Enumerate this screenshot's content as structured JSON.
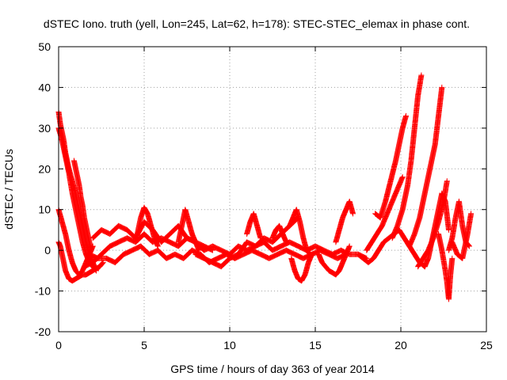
{
  "chart_data": {
    "type": "scatter",
    "title": "dSTEC Iono. truth (yell, Lon=245, Lat=62, h=178): STEC-STEC_elemax in phase cont.",
    "xlabel": "GPS time / hours of day 363 of year 2014",
    "ylabel": "dSTEC  / TECUs",
    "xlim": [
      0,
      25
    ],
    "ylim": [
      -20,
      50
    ],
    "xticks": [
      0,
      5,
      10,
      15,
      20,
      25
    ],
    "yticks": [
      -20,
      -10,
      0,
      10,
      20,
      30,
      40,
      50
    ],
    "grid": true,
    "marker": "+",
    "color": "#ff0000",
    "series": [
      {
        "x": [
          0.0,
          0.1,
          0.2,
          0.3,
          0.4,
          0.5,
          0.6,
          0.8,
          1.0,
          1.2,
          1.4,
          1.6,
          1.8,
          2.0,
          2.2
        ],
        "y": [
          34,
          31,
          29,
          27,
          24,
          22,
          20,
          17,
          14,
          10,
          6,
          2,
          -1,
          -3,
          -5
        ]
      },
      {
        "x": [
          0.0,
          0.2,
          0.4,
          0.6,
          0.8,
          1.0,
          1.2,
          1.4,
          1.6,
          1.8,
          2.0,
          2.2
        ],
        "y": [
          30,
          27,
          23,
          19,
          14,
          10,
          6,
          2,
          -1,
          -3,
          -4,
          -5
        ]
      },
      {
        "x": [
          0.9,
          1.0,
          1.1,
          1.2,
          1.3,
          1.4,
          1.5,
          1.6,
          1.7,
          1.8,
          1.9
        ],
        "y": [
          22,
          20,
          18,
          16,
          13,
          11,
          8,
          6,
          4,
          2,
          0
        ]
      },
      {
        "x": [
          0.0,
          0.2,
          0.4,
          0.6,
          0.8,
          1.0,
          1.2,
          1.4,
          1.6,
          1.8,
          2.0
        ],
        "y": [
          10,
          7,
          4,
          0,
          -3,
          -5,
          -6,
          -5,
          -3,
          -1,
          1
        ]
      },
      {
        "x": [
          0.0,
          0.1,
          0.2,
          0.3,
          0.4,
          0.5,
          0.6,
          0.8,
          1.0,
          1.2,
          1.4,
          1.6,
          1.8,
          2.0,
          2.2,
          2.4,
          2.6
        ],
        "y": [
          2,
          1,
          -1,
          -3,
          -5,
          -6,
          -7,
          -7.5,
          -7,
          -6.5,
          -6,
          -6,
          -5.5,
          -5,
          -4.5,
          -4,
          -3
        ]
      },
      {
        "x": [
          1.5,
          2.0,
          2.5,
          3.0,
          3.5,
          4.0,
          4.5,
          5.0,
          5.5,
          6.0,
          6.5,
          7.0,
          7.5,
          8.0,
          8.5,
          9.0,
          9.5,
          10.0,
          10.5,
          11.0,
          11.5,
          12.0,
          12.5,
          13.0,
          13.5,
          14.0,
          14.5,
          15.0,
          15.5,
          16.0,
          16.5,
          17.0,
          17.5,
          18.0
        ],
        "y": [
          -4,
          -3,
          -1,
          1,
          2,
          3,
          2,
          4,
          2,
          3,
          2,
          1,
          3,
          2,
          0,
          1,
          0,
          -1,
          1,
          0,
          1,
          2,
          0,
          1,
          2,
          1,
          0,
          1,
          0,
          -1,
          0,
          -1,
          -1,
          -2
        ]
      },
      {
        "x": [
          1.8,
          2.3,
          2.8,
          3.3,
          3.8,
          4.3,
          4.8,
          5.3,
          5.8,
          6.3,
          6.8,
          7.3,
          7.8,
          8.3,
          8.8,
          9.3,
          9.8,
          10.3,
          10.8,
          11.3,
          11.8,
          12.3,
          12.8,
          13.3,
          13.8,
          14.3,
          14.8,
          15.3,
          15.8,
          16.3,
          16.8
        ],
        "y": [
          -1,
          -2,
          -2,
          -3,
          -1,
          0,
          1,
          -1,
          0,
          -2,
          -1,
          -2,
          0,
          -1,
          -3,
          -2,
          -1,
          -2,
          -1,
          0,
          -1,
          -2,
          -1,
          0,
          -1,
          -2,
          -1,
          0,
          -1,
          -2,
          -1
        ]
      },
      {
        "x": [
          2.0,
          2.5,
          3.0,
          3.5,
          4.0,
          4.5,
          5.0,
          5.5,
          6.0,
          6.5,
          7.0,
          7.5,
          8.0,
          8.5,
          9.0
        ],
        "y": [
          3,
          5,
          4,
          6,
          5,
          3,
          7,
          5,
          2,
          4,
          6,
          3,
          2,
          1,
          0
        ]
      },
      {
        "x": [
          4.6,
          4.8,
          5.0,
          5.2,
          5.4,
          5.6,
          5.8
        ],
        "y": [
          4,
          8,
          10.5,
          9,
          6,
          3,
          1
        ]
      },
      {
        "x": [
          7.0,
          7.2,
          7.4,
          7.6,
          7.8,
          8.0,
          8.2
        ],
        "y": [
          2,
          6,
          10,
          7,
          4,
          2,
          0
        ]
      },
      {
        "x": [
          8.0,
          8.5,
          9.0,
          9.5,
          10.0,
          10.5,
          11.0,
          11.5,
          12.0,
          12.5,
          13.0,
          13.5,
          14.0
        ],
        "y": [
          -1,
          -2,
          -3,
          -4,
          -2,
          -1,
          2,
          1,
          3,
          2,
          4,
          6,
          8
        ]
      },
      {
        "x": [
          11.0,
          11.2,
          11.4,
          11.6,
          11.8
        ],
        "y": [
          4,
          7,
          9,
          6,
          3
        ]
      },
      {
        "x": [
          12.5,
          12.7,
          12.9,
          13.1,
          13.3
        ],
        "y": [
          3,
          5,
          6,
          4,
          2
        ]
      },
      {
        "x": [
          13.5,
          13.7,
          13.9,
          14.1,
          14.3,
          14.5,
          14.7
        ],
        "y": [
          6,
          8,
          10,
          7,
          3,
          0,
          -1
        ]
      },
      {
        "x": [
          13.6,
          13.8,
          14.0,
          14.2,
          14.4,
          14.6,
          14.8
        ],
        "y": [
          -2,
          -5,
          -7,
          -7.5,
          -6,
          -3,
          -1
        ]
      },
      {
        "x": [
          15.2,
          15.4,
          15.6,
          15.8,
          16.0,
          16.2,
          16.4,
          16.6,
          16.8,
          17.0
        ],
        "y": [
          -1,
          -3,
          -4,
          -5,
          -5.5,
          -6,
          -5,
          -3,
          -1,
          1
        ]
      },
      {
        "x": [
          16.2,
          16.4,
          16.6,
          16.8,
          17.0,
          17.2
        ],
        "y": [
          2,
          5,
          8,
          10,
          12,
          9
        ]
      },
      {
        "x": [
          17.5,
          17.8,
          18.1,
          18.4,
          18.7,
          19.0,
          19.3,
          19.6,
          19.9,
          20.2,
          20.5,
          20.8,
          21.1,
          21.4
        ],
        "y": [
          -1,
          -2,
          -3,
          -2,
          0,
          2,
          3,
          4,
          5,
          3,
          1,
          -1,
          -3,
          -4
        ]
      },
      {
        "x": [
          18.0,
          18.3,
          18.6,
          18.9,
          19.2,
          19.5,
          19.8,
          20.1
        ],
        "y": [
          0,
          2,
          4,
          6,
          9,
          12,
          15,
          18
        ]
      },
      {
        "x": [
          18.5,
          18.8,
          19.1,
          19.4,
          19.7,
          19.9,
          20.1,
          20.3
        ],
        "y": [
          9,
          8,
          12,
          17,
          22,
          26,
          30,
          33
        ]
      },
      {
        "x": [
          19.5,
          19.8,
          20.1,
          20.4,
          20.6,
          20.8,
          21.0,
          21.2
        ],
        "y": [
          3,
          6,
          10,
          16,
          22,
          30,
          38,
          43
        ]
      },
      {
        "x": [
          20.5,
          20.8,
          21.1,
          21.4,
          21.7,
          22.0,
          22.2,
          22.4
        ],
        "y": [
          1,
          4,
          8,
          14,
          20,
          26,
          33,
          40
        ]
      },
      {
        "x": [
          21.0,
          21.3,
          21.6,
          21.9,
          22.2,
          22.5,
          22.7
        ],
        "y": [
          -4,
          -2,
          0,
          3,
          7,
          12,
          17
        ]
      },
      {
        "x": [
          21.4,
          21.6,
          21.8,
          22.0,
          22.2,
          22.4,
          22.6,
          22.8
        ],
        "y": [
          -4,
          -2,
          2,
          6,
          10,
          14,
          12,
          5
        ]
      },
      {
        "x": [
          22.2,
          22.4,
          22.6,
          22.7,
          22.8,
          22.9,
          23.0
        ],
        "y": [
          4,
          0,
          -5,
          -8,
          -12,
          -6,
          -2
        ]
      },
      {
        "x": [
          22.8,
          23.0,
          23.2,
          23.4,
          23.6,
          23.8,
          24.0
        ],
        "y": [
          0,
          3,
          8,
          12,
          6,
          2,
          1
        ]
      },
      {
        "x": [
          23.0,
          23.3,
          23.6,
          23.9,
          24.1
        ],
        "y": [
          2,
          -1,
          -2,
          4,
          9
        ]
      }
    ]
  }
}
